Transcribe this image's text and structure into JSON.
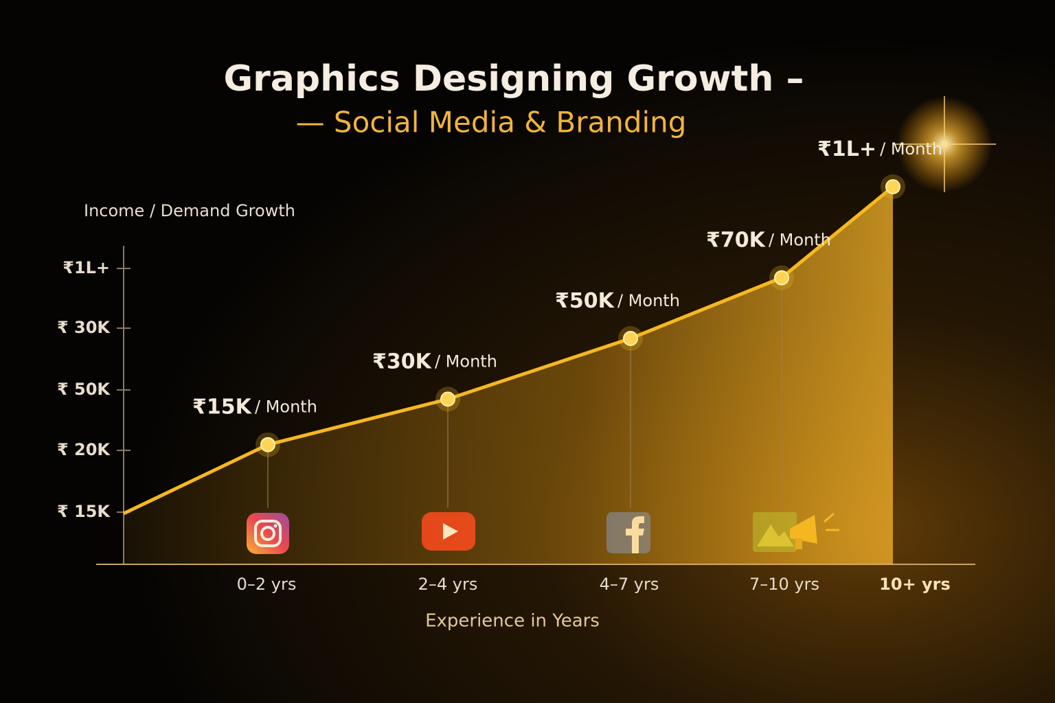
{
  "chart_data": {
    "type": "line",
    "title": "Graphics Designing Growth –",
    "subtitle": "— Social Media & Branding",
    "y_label": "Income / Demand Growth",
    "x_label": "Experience in Years",
    "y_axis_labels": [
      "₹1L+",
      "₹ 30K",
      "₹ 50K",
      "₹ 20K",
      "₹ 15K"
    ],
    "categories": [
      "0–2 yrs",
      "2–4 yrs",
      "4–7 yrs",
      "7–10 yrs",
      "10+ yrs"
    ],
    "values": [
      15000,
      30000,
      50000,
      70000,
      100000
    ],
    "value_labels": [
      "₹15K",
      "₹30K",
      "₹50K",
      "₹70K",
      "₹1L+"
    ],
    "value_label_unit": "/ Month",
    "color": "#f7b81f",
    "ylim": [
      0,
      100000
    ]
  }
}
